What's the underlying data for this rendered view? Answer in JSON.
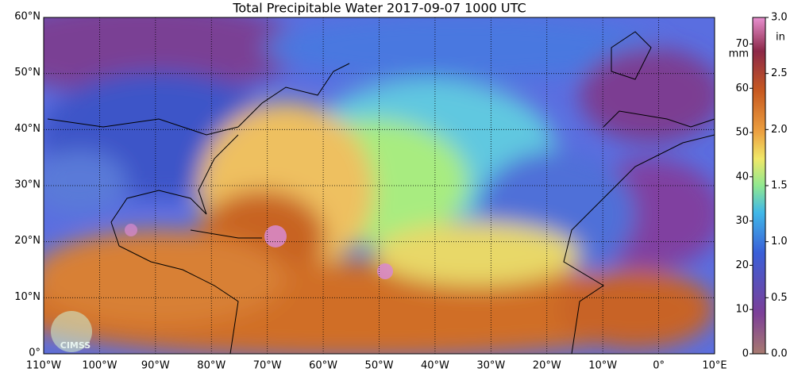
{
  "chart_data": {
    "type": "map",
    "title": "Total Precipitable Water  2017-09-07 1000 UTC",
    "xlim": [
      -110,
      10
    ],
    "ylim": [
      0,
      60
    ],
    "xticks": [
      {
        "value": -110,
        "label": "110°W"
      },
      {
        "value": -100,
        "label": "100°W"
      },
      {
        "value": -90,
        "label": "90°W"
      },
      {
        "value": -80,
        "label": "80°W"
      },
      {
        "value": -70,
        "label": "70°W"
      },
      {
        "value": -60,
        "label": "60°W"
      },
      {
        "value": -50,
        "label": "50°W"
      },
      {
        "value": -40,
        "label": "40°W"
      },
      {
        "value": -30,
        "label": "30°W"
      },
      {
        "value": -20,
        "label": "20°W"
      },
      {
        "value": -10,
        "label": "10°W"
      },
      {
        "value": 0,
        "label": "0°"
      },
      {
        "value": 10,
        "label": "10°E"
      }
    ],
    "yticks": [
      {
        "value": 0,
        "label": "0°"
      },
      {
        "value": 10,
        "label": "10°N"
      },
      {
        "value": 20,
        "label": "20°N"
      },
      {
        "value": 30,
        "label": "30°N"
      },
      {
        "value": 40,
        "label": "40°N"
      },
      {
        "value": 50,
        "label": "50°N"
      },
      {
        "value": 60,
        "label": "60°N"
      }
    ],
    "grid": true,
    "colorbar": {
      "ylim": [
        0,
        76
      ],
      "yticks": [
        0,
        10,
        20,
        30,
        40,
        50,
        60,
        70
      ],
      "ylabel": "mm",
      "y2lim": [
        0,
        3.0
      ],
      "y2ticks": [
        {
          "value": 0,
          "label": "0.0"
        },
        0.5,
        {
          "value": 1,
          "label": "1.0"
        },
        1.5,
        {
          "value": 2,
          "label": "2.0"
        },
        2.5,
        {
          "value": 3,
          "label": "3.0"
        }
      ],
      "y2label": "in"
    },
    "logo": "CIMSS"
  }
}
